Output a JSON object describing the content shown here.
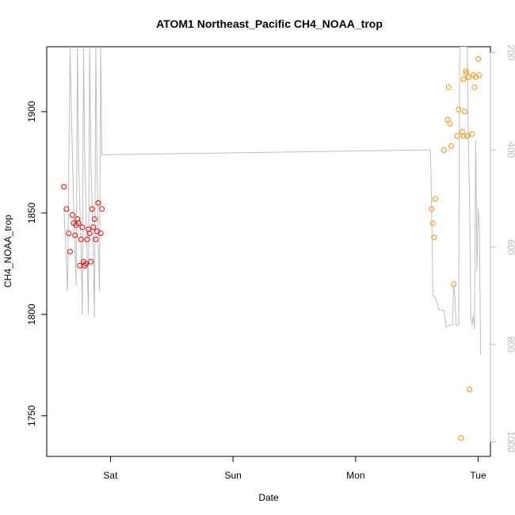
{
  "chart_data": {
    "type": "scatter",
    "title": "ATOM1 Northeast_Pacific CH4_NOAA_trop",
    "xlabel": "Date",
    "ylabel": "CH4_NOAA_trop",
    "x_ticks": [
      "Sat",
      "Sun",
      "Mon",
      "Tue"
    ],
    "y_ticks": [
      1750,
      1800,
      1850,
      1900
    ],
    "ylim": [
      1730,
      1932
    ],
    "y2_ticks": [
      200,
      400,
      600,
      800,
      1000
    ],
    "y2lim": [
      1030,
      188
    ],
    "colors": {
      "points_1": "#ff0000",
      "points_2": "#ff8c00",
      "line": "#bebebe",
      "right_axis": "#bbbbbb"
    },
    "series": [
      {
        "values": [
          [
            -0.38,
            1863
          ],
          [
            -0.36,
            1852
          ],
          [
            -0.34,
            1840
          ],
          [
            -0.33,
            1831
          ],
          [
            -0.31,
            1849
          ],
          [
            -0.3,
            1845
          ],
          [
            -0.29,
            1839
          ],
          [
            -0.28,
            1844
          ],
          [
            -0.27,
            1847
          ],
          [
            -0.26,
            1845
          ],
          [
            -0.25,
            1824
          ],
          [
            -0.24,
            1837
          ],
          [
            -0.23,
            1843
          ],
          [
            -0.22,
            1826
          ],
          [
            -0.21,
            1824
          ],
          [
            -0.2,
            1825
          ],
          [
            -0.19,
            1837
          ],
          [
            -0.18,
            1842
          ],
          [
            -0.17,
            1840
          ],
          [
            -0.16,
            1826
          ],
          [
            -0.15,
            1852
          ],
          [
            -0.14,
            1843
          ],
          [
            -0.13,
            1847
          ],
          [
            -0.12,
            1837
          ],
          [
            -0.11,
            1841
          ],
          [
            -0.1,
            1855
          ],
          [
            -0.08,
            1840
          ],
          [
            -0.07,
            1852
          ]
        ]
      },
      {
        "values": [
          [
            2.62,
            1852
          ],
          [
            2.63,
            1845
          ],
          [
            2.64,
            1838
          ],
          [
            2.65,
            1857
          ],
          [
            2.72,
            1881
          ],
          [
            2.75,
            1896
          ],
          [
            2.76,
            1912
          ],
          [
            2.77,
            1894
          ],
          [
            2.78,
            1883
          ],
          [
            2.8,
            1815
          ],
          [
            2.83,
            1888
          ],
          [
            2.84,
            1901
          ],
          [
            2.86,
            1739
          ],
          [
            2.87,
            1890
          ],
          [
            2.88,
            1916
          ],
          [
            2.88,
            1888
          ],
          [
            2.89,
            1900
          ],
          [
            2.9,
            1920
          ],
          [
            2.9,
            1919
          ],
          [
            2.91,
            1888
          ],
          [
            2.92,
            1917
          ],
          [
            2.93,
            1763
          ],
          [
            2.95,
            1889
          ],
          [
            2.96,
            1918
          ],
          [
            2.97,
            1912
          ],
          [
            2.98,
            1917
          ],
          [
            3.0,
            1926
          ],
          [
            3.01,
            1918
          ]
        ]
      }
    ],
    "line_series": {
      "axis": "right",
      "values": [
        [
          -0.38,
          520
        ],
        [
          -0.35,
          690
        ],
        [
          -0.33,
          188
        ],
        [
          -0.32,
          310
        ],
        [
          -0.3,
          520
        ],
        [
          -0.28,
          680
        ],
        [
          -0.27,
          188
        ],
        [
          -0.26,
          420
        ],
        [
          -0.24,
          600
        ],
        [
          -0.23,
          740
        ],
        [
          -0.22,
          188
        ],
        [
          -0.21,
          420
        ],
        [
          -0.19,
          620
        ],
        [
          -0.18,
          740
        ],
        [
          -0.17,
          188
        ],
        [
          -0.16,
          420
        ],
        [
          -0.14,
          600
        ],
        [
          -0.13,
          745
        ],
        [
          -0.12,
          188
        ],
        [
          -0.11,
          420
        ],
        [
          -0.1,
          600
        ],
        [
          -0.09,
          690
        ],
        [
          -0.08,
          188
        ],
        [
          -0.07,
          410
        ],
        [
          -0.06,
          410
        ],
        [
          2.6,
          400
        ],
        [
          2.61,
          400
        ],
        [
          2.62,
          500
        ],
        [
          2.63,
          700
        ],
        [
          2.64,
          700
        ],
        [
          2.66,
          710
        ],
        [
          2.68,
          730
        ],
        [
          2.7,
          730
        ],
        [
          2.72,
          730
        ],
        [
          2.74,
          765
        ],
        [
          2.76,
          760
        ],
        [
          2.78,
          760
        ],
        [
          2.79,
          760
        ],
        [
          2.8,
          680
        ],
        [
          2.81,
          700
        ],
        [
          2.82,
          760
        ],
        [
          2.84,
          760
        ],
        [
          2.85,
          188
        ],
        [
          2.86,
          188
        ],
        [
          2.87,
          188
        ],
        [
          2.88,
          188
        ],
        [
          2.89,
          188
        ],
        [
          2.9,
          188
        ],
        [
          2.91,
          188
        ],
        [
          2.92,
          390
        ],
        [
          2.93,
          500
        ],
        [
          2.94,
          745
        ],
        [
          2.95,
          760
        ],
        [
          2.96,
          740
        ],
        [
          2.97,
          770
        ],
        [
          2.98,
          380
        ],
        [
          2.99,
          650
        ],
        [
          3.0,
          520
        ],
        [
          3.01,
          560
        ],
        [
          3.02,
          820
        ]
      ]
    }
  }
}
